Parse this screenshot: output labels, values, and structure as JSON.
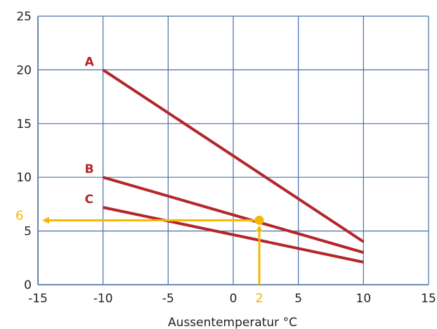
{
  "chart_data": {
    "type": "line",
    "title": "",
    "xlabel": "Aussentemperatur °C",
    "ylabel": "",
    "xlim": [
      -15,
      15
    ],
    "ylim": [
      0,
      25
    ],
    "x_ticks": [
      -15,
      -10,
      -5,
      0,
      5,
      10,
      15
    ],
    "y_ticks": [
      0,
      5,
      10,
      15,
      20,
      25
    ],
    "grid": true,
    "series": [
      {
        "name": "A",
        "x": [
          -10,
          10
        ],
        "y": [
          20,
          4
        ]
      },
      {
        "name": "B",
        "x": [
          -10,
          10
        ],
        "y": [
          10,
          3
        ]
      },
      {
        "name": "C",
        "x": [
          -10,
          10
        ],
        "y": [
          7.2,
          2.1
        ]
      }
    ],
    "annotation": {
      "x": 2,
      "y": 6,
      "x_label": "2",
      "y_label": "6"
    }
  },
  "colors": {
    "series": "#b3272a",
    "grid": "#4a6fa5",
    "annotation": "#f5b800",
    "text": "#222222"
  }
}
